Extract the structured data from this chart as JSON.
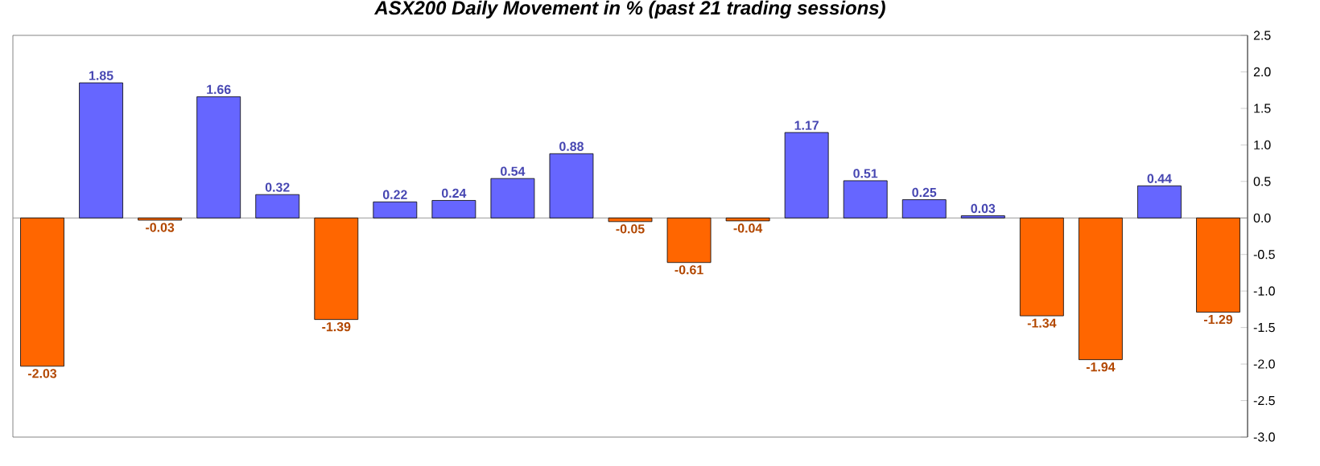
{
  "chart_data": {
    "type": "bar",
    "title": "ASX200 Daily Movement in % (past 21 trading sessions)",
    "categories": [
      null,
      null,
      null,
      null,
      null,
      null,
      null,
      null,
      null,
      null,
      null,
      null,
      null,
      null,
      null,
      null,
      null,
      null,
      null,
      null,
      null
    ],
    "values": [
      -2.03,
      1.85,
      -0.03,
      1.66,
      0.32,
      -1.39,
      0.22,
      0.24,
      0.54,
      0.88,
      -0.05,
      -0.61,
      -0.04,
      1.17,
      0.51,
      0.25,
      0.03,
      -1.34,
      -1.94,
      0.44,
      -1.29
    ],
    "colors": [
      "#ff6600",
      "#6666ff",
      "#ff6600",
      "#6666ff",
      "#6666ff",
      "#ff6600",
      "#6666ff",
      "#6666ff",
      "#6666ff",
      "#6666ff",
      "#ff6600",
      "#ff6600",
      "#ff6600",
      "#6666ff",
      "#6666ff",
      "#6666ff",
      "#6666ff",
      "#ff6600",
      "#ff6600",
      "#6666ff",
      "#ff6600"
    ],
    "ylim": [
      -3.0,
      2.5
    ],
    "yticks": [
      {
        "value": -3.0,
        "label": "-3.0"
      },
      -2.5,
      {
        "value": -2.0,
        "label": "-2.0"
      },
      -1.5,
      {
        "value": -1.0,
        "label": "-1.0"
      },
      -0.5,
      {
        "value": 0.0,
        "label": "0.0"
      },
      0.5,
      {
        "value": 1.0,
        "label": "1.0"
      },
      1.5,
      {
        "value": 2.0,
        "label": "2.0"
      },
      2.5
    ],
    "data_labels": true
  }
}
